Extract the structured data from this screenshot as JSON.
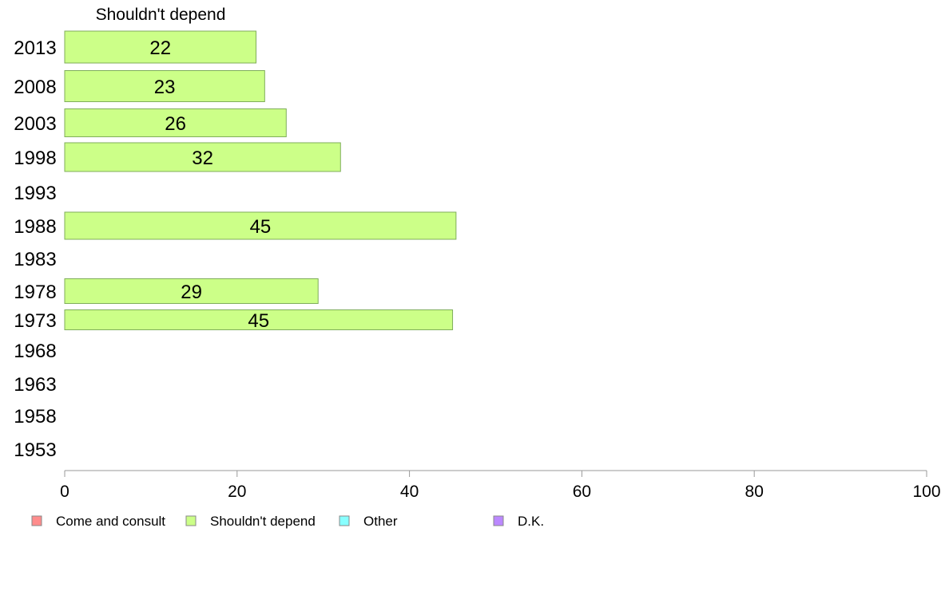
{
  "chart_data": {
    "type": "bar",
    "orientation": "horizontal",
    "title": "Shouldn't depend",
    "categories": [
      "2013",
      "2008",
      "2003",
      "1998",
      "1993",
      "1988",
      "1983",
      "1978",
      "1973",
      "1968",
      "1963",
      "1958",
      "1953"
    ],
    "series": [
      {
        "name": "Shouldn't depend",
        "color": "#ccff88",
        "values": [
          22.2,
          23.2,
          25.7,
          32.0,
          null,
          45.4,
          null,
          29.4,
          45.0,
          null,
          null,
          null,
          null
        ],
        "labels": [
          "22",
          "23",
          "26",
          "32",
          null,
          "45",
          null,
          "29",
          "45",
          null,
          null,
          null,
          null
        ]
      }
    ],
    "xlim": [
      0,
      100
    ],
    "xticks": [
      0,
      20,
      40,
      60,
      80,
      100
    ],
    "xlabel": "",
    "ylabel": "",
    "grid": false,
    "legend": {
      "placement": "bottom-left",
      "items": [
        {
          "label": "Come and consult",
          "color": "#ff8c8c"
        },
        {
          "label": "Shouldn't depend",
          "color": "#ccff88"
        },
        {
          "label": "Other",
          "color": "#88ffff"
        },
        {
          "label": "D.K.",
          "color": "#bb88ff"
        }
      ]
    }
  }
}
